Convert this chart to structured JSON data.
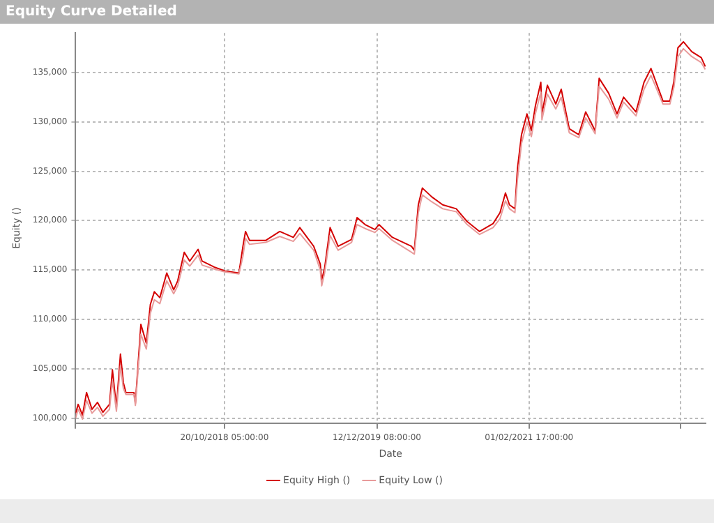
{
  "chart_data": {
    "type": "line",
    "title": "Equity Curve Detailed",
    "xlabel": "Date",
    "ylabel": "Equity ()",
    "x": [
      "2017-09-07",
      "2017-09-14",
      "2017-09-26",
      "2017-10-07",
      "2017-10-22",
      "2017-11-06",
      "2017-11-21",
      "2017-12-09",
      "2017-12-17",
      "2017-12-28",
      "2018-01-08",
      "2018-01-16",
      "2018-01-23",
      "2018-02-14",
      "2018-02-18",
      "2018-03-05",
      "2018-03-20",
      "2018-03-31",
      "2018-04-11",
      "2018-04-26",
      "2018-05-15",
      "2018-06-03",
      "2018-06-14",
      "2018-07-02",
      "2018-07-17",
      "2018-08-09",
      "2018-08-20",
      "2018-09-22",
      "2018-10-22",
      "2018-11-29",
      "2018-12-10",
      "2018-12-17",
      "2018-12-28",
      "2019-02-11",
      "2019-03-21",
      "2019-04-27",
      "2019-05-15",
      "2019-06-22",
      "2019-07-10",
      "2019-07-14",
      "2019-07-22",
      "2019-08-06",
      "2019-08-28",
      "2019-10-04",
      "2019-10-19",
      "2019-11-10",
      "2019-12-07",
      "2019-12-18",
      "2020-01-24",
      "2020-03-16",
      "2020-03-24",
      "2020-04-04",
      "2020-04-15",
      "2020-05-11",
      "2020-06-10",
      "2020-07-17",
      "2020-08-16",
      "2020-09-19",
      "2020-10-26",
      "2020-11-14",
      "2020-11-29",
      "2020-12-10",
      "2020-12-25",
      "2021-01-01",
      "2021-01-12",
      "2021-01-27",
      "2021-02-08",
      "2021-02-19",
      "2021-03-06",
      "2021-03-09",
      "2021-03-24",
      "2021-04-16",
      "2021-05-01",
      "2021-05-23",
      "2021-06-18",
      "2021-07-07",
      "2021-08-02",
      "2021-08-13",
      "2021-09-08",
      "2021-10-01",
      "2021-10-19",
      "2021-11-22",
      "2021-12-14",
      "2022-01-02",
      "2022-02-04",
      "2022-02-23",
      "2022-03-06",
      "2022-03-17",
      "2022-04-01",
      "2022-04-24",
      "2022-05-20",
      "2022-05-31"
    ],
    "series": [
      {
        "name": "Equity High ()",
        "color": "#d40000",
        "values": [
          100500,
          101400,
          100300,
          102600,
          100900,
          101600,
          100600,
          101400,
          104900,
          101100,
          106500,
          103600,
          102600,
          102600,
          101500,
          109500,
          107600,
          111500,
          112800,
          112200,
          114700,
          113000,
          113900,
          116800,
          115900,
          117100,
          115900,
          115300,
          114900,
          114700,
          117400,
          118900,
          118000,
          118000,
          118900,
          118300,
          119300,
          117400,
          115600,
          114000,
          115200,
          119300,
          117400,
          118100,
          120300,
          119600,
          119100,
          119600,
          118300,
          117400,
          117000,
          121600,
          123300,
          122400,
          121600,
          121200,
          119900,
          118900,
          119700,
          120800,
          122800,
          121600,
          121200,
          125300,
          128700,
          130800,
          129100,
          131600,
          134000,
          130800,
          133700,
          131800,
          133300,
          129300,
          128700,
          131000,
          129100,
          134400,
          132900,
          130800,
          132500,
          131000,
          134000,
          135400,
          132100,
          132100,
          134100,
          137500,
          138100,
          137100,
          136500,
          135600
        ]
      },
      {
        "name": "Equity Low ()",
        "color": "#e89a9a",
        "values": [
          100000,
          100900,
          99900,
          101800,
          100500,
          101100,
          100200,
          100900,
          103800,
          100700,
          105300,
          103000,
          102400,
          102400,
          101300,
          108500,
          107000,
          110600,
          112000,
          111600,
          113900,
          112600,
          113400,
          116000,
          115400,
          116500,
          115500,
          115100,
          114800,
          114600,
          116400,
          118200,
          117600,
          117800,
          118400,
          117900,
          118700,
          117000,
          115000,
          113400,
          114700,
          118500,
          117000,
          117800,
          119600,
          119200,
          118800,
          119200,
          118000,
          116800,
          116600,
          120800,
          122600,
          121900,
          121200,
          120900,
          119600,
          118600,
          119300,
          120200,
          122000,
          121200,
          120800,
          124200,
          127800,
          130000,
          128500,
          130800,
          133000,
          130200,
          132800,
          131300,
          132500,
          128900,
          128400,
          130400,
          128800,
          133600,
          132300,
          130400,
          132000,
          130600,
          133300,
          134700,
          131800,
          131800,
          133500,
          136600,
          137400,
          136600,
          136000,
          135300
        ]
      }
    ],
    "xlim": [
      "2017-09-07",
      "2022-06-01"
    ],
    "xticks": [
      {
        "value": "2017-09-07",
        "label": null
      },
      {
        "value": "2018-10-20T05:00",
        "label": "20/10/2018 05:00:00"
      },
      {
        "value": "2019-12-12T08:00",
        "label": "12/12/2019 08:00:00"
      },
      {
        "value": "2021-02-01T17:00",
        "label": "01/02/2021 17:00:00"
      },
      {
        "value": "2022-03-25",
        "label": null
      }
    ],
    "ylim": [
      99500,
      139000
    ],
    "yticks": [
      {
        "value": 100000,
        "label": "100,000"
      },
      {
        "value": 105000,
        "label": "105,000"
      },
      {
        "value": 110000,
        "label": "110,000"
      },
      {
        "value": 115000,
        "label": "115,000"
      },
      {
        "value": 120000,
        "label": "120,000"
      },
      {
        "value": 125000,
        "label": "125,000"
      },
      {
        "value": 130000,
        "label": "130,000"
      },
      {
        "value": 135000,
        "label": "135,000"
      }
    ],
    "grid": true,
    "legend": "bottom",
    "marker": "none",
    "line_style": "solid"
  }
}
